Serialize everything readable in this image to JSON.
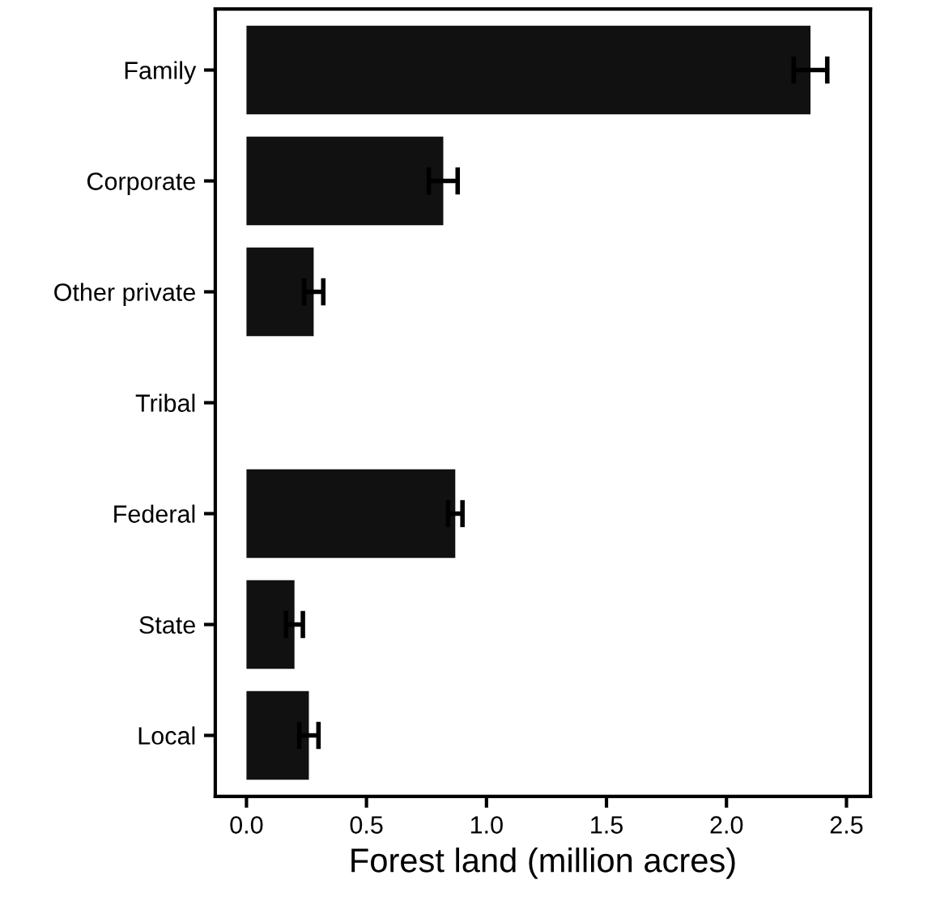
{
  "chart_data": {
    "type": "bar",
    "orientation": "horizontal",
    "xlabel": "Forest land (million acres)",
    "categories": [
      "Family",
      "Corporate",
      "Other private",
      "Tribal",
      "Federal",
      "State",
      "Local"
    ],
    "values": [
      2.35,
      0.82,
      0.28,
      null,
      0.87,
      0.2,
      0.26
    ],
    "errors": [
      0.07,
      0.06,
      0.04,
      null,
      0.03,
      0.035,
      0.04
    ],
    "color": "#111111",
    "xlim": [
      -0.13,
      2.6
    ],
    "xticks": [
      {
        "value": 0,
        "label": "0.0"
      },
      0.5,
      {
        "value": 1,
        "label": "1.0"
      },
      1.5,
      {
        "value": 2,
        "label": "2.0"
      },
      2.5
    ],
    "grid": false
  }
}
